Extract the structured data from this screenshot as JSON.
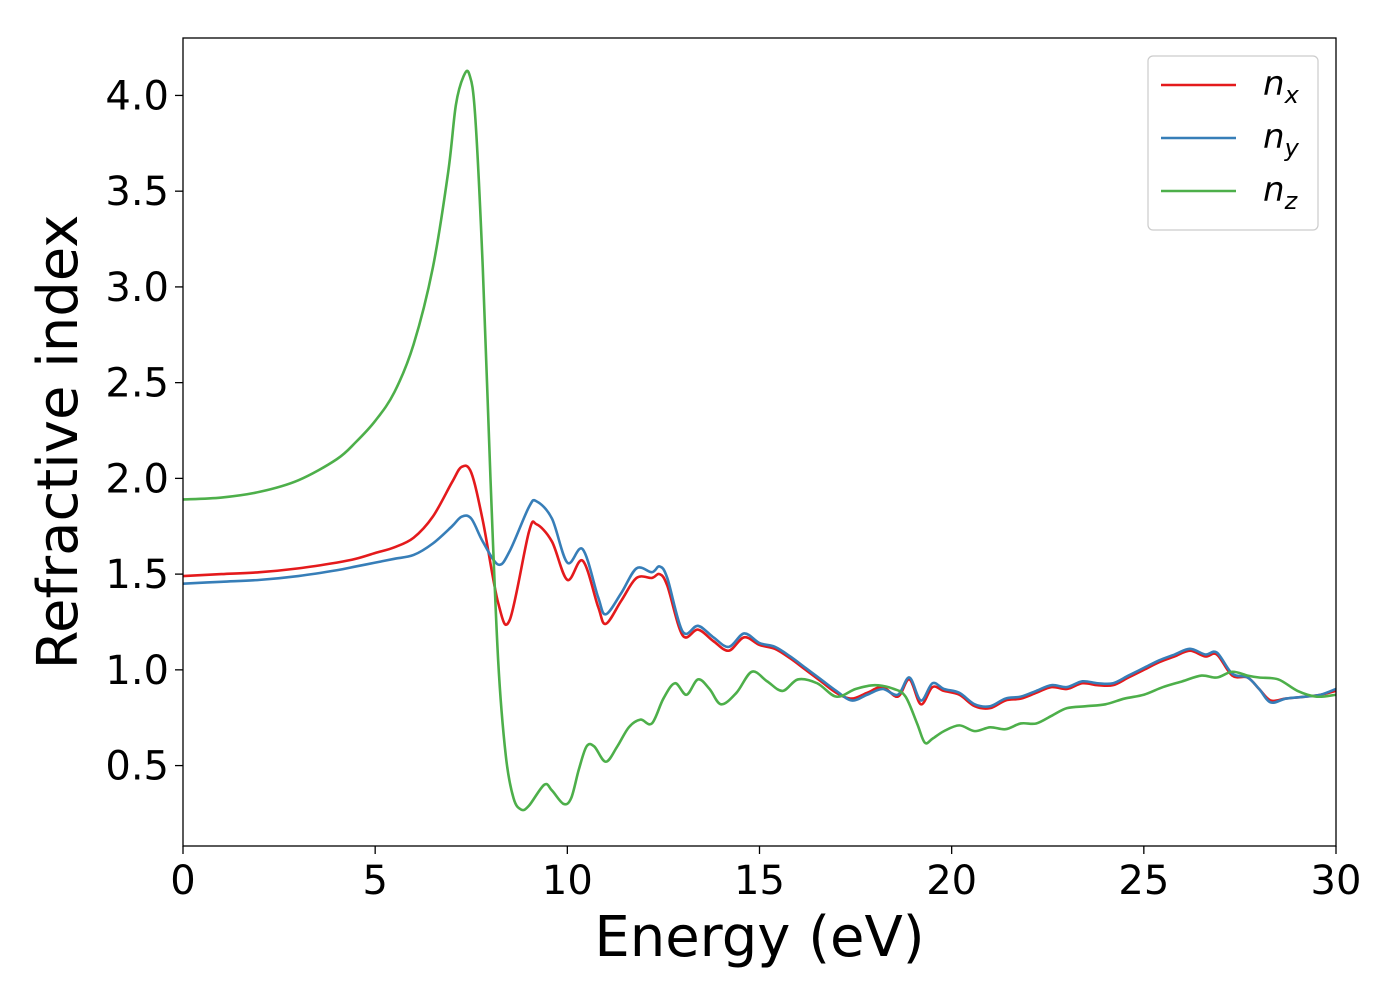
{
  "chart_data": {
    "type": "line",
    "title": "",
    "xlabel": "Energy (eV)",
    "ylabel": "Refractive index",
    "xlim": [
      0,
      30
    ],
    "ylim": [
      0.08,
      4.3
    ],
    "xticks": [
      0,
      5,
      10,
      15,
      20,
      25,
      30
    ],
    "xtick_labels": [
      "0",
      "5",
      "10",
      "15",
      "20",
      "25",
      "30"
    ],
    "yticks": [
      0.5,
      1.0,
      1.5,
      2.0,
      2.5,
      3.0,
      3.5,
      4.0
    ],
    "ytick_labels": [
      "0.5",
      "1.0",
      "1.5",
      "2.0",
      "2.5",
      "3.0",
      "3.5",
      "4.0"
    ],
    "grid": false,
    "legend_position": "top-right",
    "series": [
      {
        "name": "n_x",
        "label_main": "n",
        "label_sub": "x",
        "color": "#e41a1c",
        "x": [
          0,
          1,
          2,
          3,
          4,
          4.5,
          5,
          5.5,
          6,
          6.5,
          7,
          7.25,
          7.5,
          7.8,
          8.2,
          8.5,
          9.0,
          9.2,
          9.6,
          10.0,
          10.4,
          10.8,
          11.0,
          11.4,
          11.8,
          12.2,
          12.4,
          12.6,
          13.0,
          13.4,
          13.8,
          14.2,
          14.6,
          15.0,
          15.4,
          15.8,
          16.2,
          16.6,
          17.0,
          17.4,
          17.8,
          18.2,
          18.6,
          18.9,
          19.2,
          19.5,
          19.8,
          20.2,
          20.6,
          21.0,
          21.4,
          21.8,
          22.2,
          22.6,
          23.0,
          23.4,
          23.8,
          24.2,
          24.6,
          25.0,
          25.4,
          25.8,
          26.2,
          26.6,
          26.9,
          27.3,
          27.7,
          28.0,
          28.3,
          28.7,
          29.2,
          29.6,
          30.0
        ],
        "y": [
          1.49,
          1.5,
          1.51,
          1.53,
          1.56,
          1.58,
          1.61,
          1.64,
          1.69,
          1.8,
          1.98,
          2.06,
          2.03,
          1.78,
          1.35,
          1.26,
          1.72,
          1.76,
          1.67,
          1.47,
          1.57,
          1.33,
          1.24,
          1.36,
          1.48,
          1.48,
          1.5,
          1.44,
          1.18,
          1.21,
          1.15,
          1.1,
          1.17,
          1.13,
          1.11,
          1.06,
          1.0,
          0.94,
          0.88,
          0.85,
          0.88,
          0.91,
          0.86,
          0.95,
          0.82,
          0.91,
          0.89,
          0.87,
          0.81,
          0.8,
          0.84,
          0.85,
          0.88,
          0.91,
          0.9,
          0.93,
          0.92,
          0.92,
          0.96,
          1.0,
          1.04,
          1.07,
          1.1,
          1.07,
          1.08,
          0.97,
          0.96,
          0.9,
          0.84,
          0.85,
          0.86,
          0.87,
          0.89
        ]
      },
      {
        "name": "n_y",
        "label_main": "n",
        "label_sub": "y",
        "color": "#377eb8",
        "x": [
          0,
          1,
          2,
          3,
          4,
          4.5,
          5,
          5.5,
          6,
          6.5,
          7,
          7.25,
          7.5,
          7.8,
          8.2,
          8.5,
          9.0,
          9.2,
          9.6,
          10.0,
          10.4,
          10.8,
          11.0,
          11.4,
          11.8,
          12.2,
          12.4,
          12.6,
          13.0,
          13.4,
          13.8,
          14.2,
          14.6,
          15.0,
          15.4,
          15.8,
          16.2,
          16.6,
          17.0,
          17.4,
          17.8,
          18.2,
          18.6,
          18.9,
          19.2,
          19.5,
          19.8,
          20.2,
          20.6,
          21.0,
          21.4,
          21.8,
          22.2,
          22.6,
          23.0,
          23.4,
          23.8,
          24.2,
          24.6,
          25.0,
          25.4,
          25.8,
          26.2,
          26.6,
          26.9,
          27.3,
          27.7,
          28.0,
          28.3,
          28.7,
          29.2,
          29.6,
          30.0
        ],
        "y": [
          1.45,
          1.46,
          1.47,
          1.49,
          1.52,
          1.54,
          1.56,
          1.58,
          1.6,
          1.66,
          1.75,
          1.8,
          1.79,
          1.67,
          1.55,
          1.62,
          1.85,
          1.88,
          1.79,
          1.56,
          1.63,
          1.38,
          1.29,
          1.4,
          1.53,
          1.51,
          1.54,
          1.48,
          1.2,
          1.23,
          1.17,
          1.12,
          1.19,
          1.14,
          1.12,
          1.07,
          1.01,
          0.95,
          0.89,
          0.84,
          0.87,
          0.9,
          0.87,
          0.96,
          0.84,
          0.93,
          0.9,
          0.88,
          0.82,
          0.81,
          0.85,
          0.86,
          0.89,
          0.92,
          0.91,
          0.94,
          0.93,
          0.93,
          0.97,
          1.01,
          1.05,
          1.08,
          1.11,
          1.08,
          1.09,
          0.98,
          0.96,
          0.9,
          0.83,
          0.85,
          0.86,
          0.87,
          0.9
        ]
      },
      {
        "name": "n_z",
        "label_main": "n",
        "label_sub": "z",
        "color": "#4daf4a",
        "x": [
          0,
          1,
          2,
          3,
          4,
          4.5,
          5,
          5.5,
          6,
          6.5,
          6.9,
          7.1,
          7.3,
          7.45,
          7.6,
          7.8,
          8.0,
          8.2,
          8.4,
          8.6,
          8.8,
          9.0,
          9.4,
          9.6,
          9.9,
          10.1,
          10.3,
          10.5,
          10.7,
          11.0,
          11.3,
          11.6,
          11.9,
          12.2,
          12.5,
          12.8,
          13.1,
          13.4,
          13.7,
          14.0,
          14.4,
          14.8,
          15.2,
          15.6,
          16.0,
          16.5,
          17.0,
          17.5,
          18.0,
          18.5,
          18.8,
          19.1,
          19.3,
          19.5,
          19.8,
          20.2,
          20.6,
          21.0,
          21.4,
          21.8,
          22.2,
          22.6,
          23.0,
          23.5,
          24.0,
          24.5,
          25.0,
          25.5,
          26.0,
          26.5,
          26.9,
          27.3,
          27.7,
          28.0,
          28.5,
          29.0,
          29.5,
          30.0
        ],
        "y": [
          1.89,
          1.9,
          1.93,
          1.99,
          2.1,
          2.19,
          2.3,
          2.45,
          2.7,
          3.1,
          3.6,
          3.95,
          4.1,
          4.11,
          3.9,
          3.1,
          2.0,
          1.05,
          0.55,
          0.33,
          0.27,
          0.29,
          0.4,
          0.37,
          0.3,
          0.33,
          0.48,
          0.6,
          0.6,
          0.52,
          0.6,
          0.7,
          0.74,
          0.72,
          0.85,
          0.93,
          0.87,
          0.95,
          0.9,
          0.82,
          0.88,
          0.99,
          0.94,
          0.89,
          0.95,
          0.93,
          0.86,
          0.9,
          0.92,
          0.9,
          0.86,
          0.72,
          0.62,
          0.64,
          0.68,
          0.71,
          0.68,
          0.7,
          0.69,
          0.72,
          0.72,
          0.76,
          0.8,
          0.81,
          0.82,
          0.85,
          0.87,
          0.91,
          0.94,
          0.97,
          0.96,
          0.99,
          0.97,
          0.96,
          0.95,
          0.89,
          0.86,
          0.87
        ]
      }
    ]
  }
}
